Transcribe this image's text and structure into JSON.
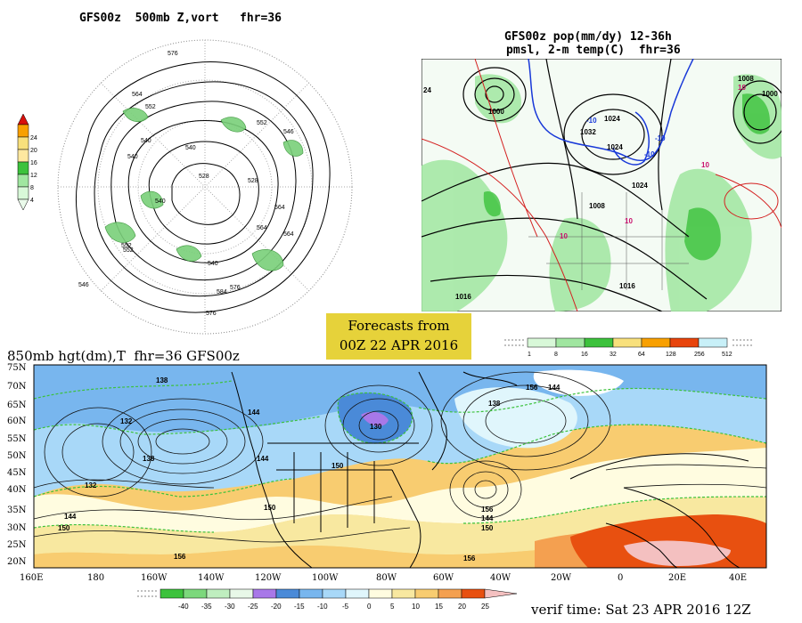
{
  "top_left": {
    "title": "GFS00z  500mb Z,vort   fhr=36",
    "legend": {
      "values": [
        "24",
        "20",
        "16",
        "12",
        "8",
        "4"
      ],
      "colors": [
        "#d8100c",
        "#f8a000",
        "#f8e07c",
        "#3cc23c",
        "#a0e6a0",
        "#e0f8e0"
      ]
    },
    "labels": [
      "576",
      "564",
      "552",
      "540",
      "528",
      "540",
      "552",
      "564",
      "576",
      "546",
      "552",
      "540",
      "528",
      "540",
      "564",
      "576",
      "584",
      "546",
      "540",
      "552",
      "564"
    ]
  },
  "top_right": {
    "title_line1": "GFS00z pop(mm/dy) 12-36h",
    "title_line2": "pmsl, 2-m temp(C)  fhr=36",
    "labels": [
      "1000",
      "1024",
      "1032",
      "1024",
      "1024",
      "1008",
      "1008",
      "1000",
      "1016",
      "1016",
      "24",
      "10",
      "10",
      "10",
      "10",
      "-10",
      "-10",
      "-10"
    ]
  },
  "center": {
    "forecast_line1": "Forecasts from",
    "forecast_line2": "00Z 22 APR 2016",
    "precip_legend": {
      "values": [
        "1",
        "8",
        "16",
        "32",
        "64",
        "128",
        "256",
        "512"
      ],
      "colors": [
        "#d8f8d8",
        "#a0e6a0",
        "#3cc23c",
        "#f8e07c",
        "#f8a000",
        "#e8440c",
        "#c8f0f8"
      ]
    }
  },
  "bottom": {
    "title": "850mb hgt(dm),T  fhr=36 GFS00z",
    "lat_labels": [
      "75N",
      "70N",
      "65N",
      "60N",
      "55N",
      "50N",
      "45N",
      "40N",
      "35N",
      "30N",
      "25N",
      "20N"
    ],
    "lon_labels": [
      "160E",
      "180",
      "160W",
      "140W",
      "120W",
      "100W",
      "80W",
      "60W",
      "40W",
      "20W",
      "0",
      "20E",
      "40E"
    ],
    "contour_labels": [
      "138",
      "132",
      "138",
      "132",
      "144",
      "144",
      "150",
      "156",
      "150",
      "144",
      "156",
      "150",
      "156",
      "150",
      "144",
      "138",
      "130",
      "144",
      "156"
    ],
    "temp_legend": {
      "values": [
        "-40",
        "-35",
        "-30",
        "-25",
        "-20",
        "-15",
        "-10",
        "-5",
        "0",
        "5",
        "10",
        "15",
        "20",
        "25"
      ],
      "colors": [
        "#3cc23c",
        "#7cd87c",
        "#bfeebf",
        "#e8f8e8",
        "#a878e8",
        "#4a8ad8",
        "#78b6ee",
        "#a8d8f8",
        "#e0f6fc",
        "#fffce0",
        "#f8e8a0",
        "#f8cc70",
        "#f4a050",
        "#e85010",
        "#f4c0c0"
      ]
    },
    "verif_time": "verif time: Sat 23 APR 2016 12Z"
  }
}
